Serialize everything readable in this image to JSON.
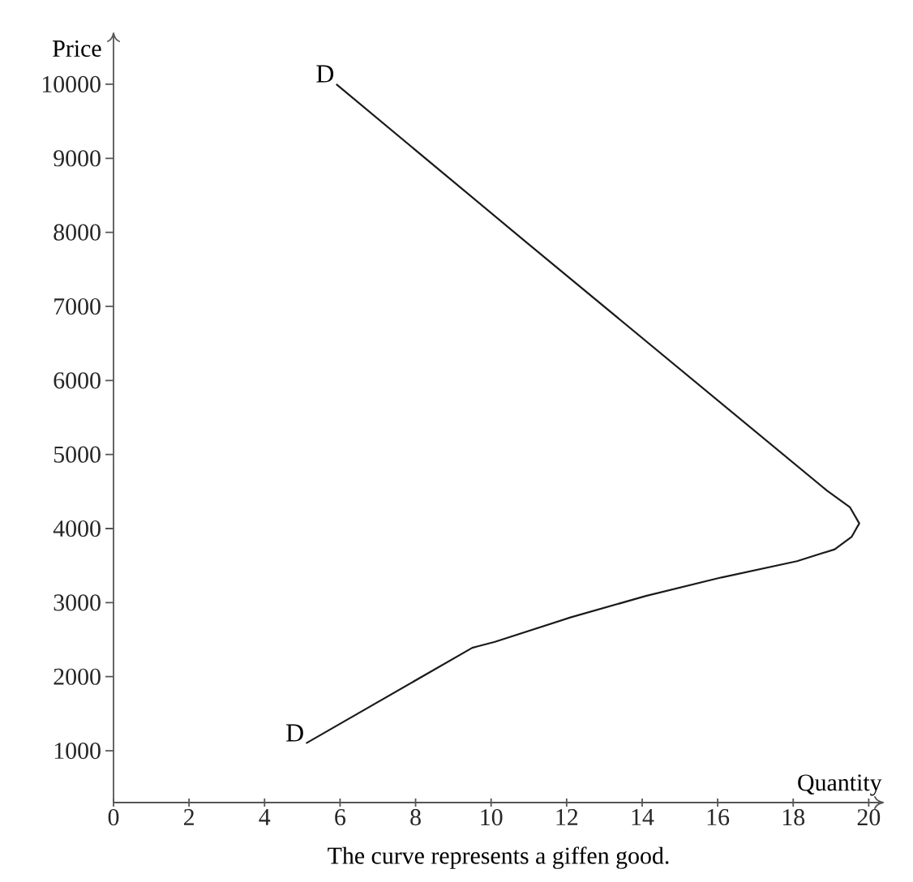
{
  "chart_data": {
    "type": "line",
    "xlabel": "Quantity",
    "ylabel": "Price",
    "x": [
      5.1,
      9.5,
      9.65,
      10.1,
      12.1,
      14.1,
      16.1,
      18.1,
      19.1,
      19.55,
      19.75,
      19.5,
      18.9,
      10.9,
      5.9
    ],
    "values": [
      1100,
      2390,
      2410,
      2470,
      2800,
      3090,
      3340,
      3560,
      3720,
      3890,
      4070,
      4290,
      4510,
      7880,
      10000
    ],
    "color": "#1a1a1a",
    "xlim": [
      0,
      20.4
    ],
    "ylim": [
      300,
      10700
    ],
    "xticks": [
      0,
      2,
      4,
      6,
      8,
      10,
      12,
      14,
      16,
      18,
      20
    ],
    "yticks": [
      1000,
      2000,
      3000,
      4000,
      5000,
      6000,
      7000,
      8000,
      9000,
      10000
    ],
    "grid": false,
    "marker": "none",
    "line_style": "solid",
    "annotations": [
      {
        "text": "D",
        "x": 5.9,
        "y": 10000
      },
      {
        "text": "D",
        "x": 5.1,
        "y": 1100
      },
      "The curve represents a giffen good."
    ]
  }
}
